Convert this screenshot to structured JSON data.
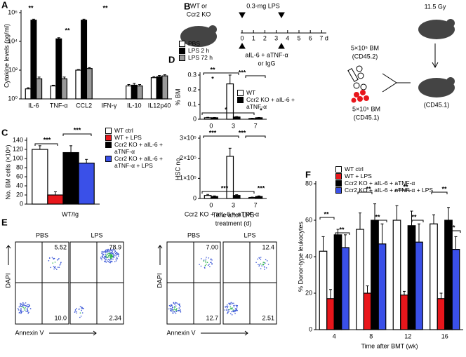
{
  "chart_data": [
    {
      "type": "bar",
      "panel": "A",
      "y_label": "Cytokine levels (pg/ml)",
      "log_scale": true,
      "categories": [
        "IL-6",
        "TNF-α",
        "CCL2",
        "IFN-γ",
        "IL-10",
        "IL12p40"
      ],
      "ylim": [
        1,
        1000000
      ],
      "yticks": [
        {
          "value": 1,
          "label": "10⁰"
        },
        {
          "value": 100,
          "label": "10²"
        },
        {
          "value": 10000,
          "label": "10⁴"
        },
        {
          "value": 1000000,
          "label": "10⁶"
        }
      ],
      "series": [
        {
          "name": "PBS",
          "color": "#ffffff",
          "values": [
            5,
            8,
            100,
            null,
            8,
            30
          ],
          "errors": [
            1,
            1,
            10,
            null,
            2,
            5
          ]
        },
        {
          "name": "LPS 2 h",
          "color": "#000000",
          "values": [
            300000,
            15000,
            300000,
            null,
            9,
            35
          ],
          "errors": [
            50000,
            3000,
            50000,
            null,
            3,
            8
          ]
        },
        {
          "name": "LPS 72 h",
          "color": "#999999",
          "values": [
            25,
            25,
            130,
            null,
            8,
            40
          ],
          "errors": [
            8,
            8,
            20,
            null,
            2,
            8
          ]
        }
      ],
      "annotations": [
        "**",
        "**",
        "**"
      ]
    },
    {
      "type": "bar",
      "panel": "C",
      "y_label": "No. BM cells (×10⁶)",
      "categories": [
        null
      ],
      "ylim": [
        0,
        140
      ],
      "yticks": [
        0,
        20,
        40,
        60,
        80,
        100,
        120,
        140
      ],
      "series": [
        {
          "name": "WT ctrl",
          "color": "#ffffff",
          "values": [
            120
          ],
          "errors": [
            8
          ]
        },
        {
          "name": "WT + LPS",
          "color": "#e8161b",
          "values": [
            20
          ],
          "errors": [
            7
          ]
        },
        {
          "name": "Ccr2 KO + aIL-6 + aTNF-α",
          "color": "#000000",
          "values": [
            113
          ],
          "errors": [
            15
          ]
        },
        {
          "name": "Ccr2 KO + aIL-6 + aTNF-α + LPS",
          "color": "#3a50e8",
          "values": [
            90
          ],
          "errors": [
            8
          ]
        }
      ],
      "annotations": [
        "***",
        "***"
      ]
    },
    {
      "type": "bar",
      "panel": "D",
      "y_label": "% BM",
      "categories": [
        "0",
        "3",
        "7"
      ],
      "ylim": [
        0,
        0.3
      ],
      "yticks": [
        0,
        0.1,
        0.2,
        0.3
      ],
      "series": [
        {
          "name": "WT",
          "color": "#ffffff",
          "values": [
            0.01,
            0.24,
            0.005
          ],
          "errors": [
            0.003,
            0.06,
            0.002
          ]
        },
        {
          "name": "Ccr2 KO + aIL-6 + aTNF-α",
          "color": "#000000",
          "values": [
            0.01,
            0.015,
            0.01
          ],
          "errors": [
            0.002,
            0.003,
            0.002
          ]
        }
      ],
      "annotations": [
        "**",
        "*",
        "***",
        "*",
        "*"
      ]
    },
    {
      "type": "bar",
      "y_label": "HSC no.",
      "x_label": [
        "Time after LPS",
        "treatment (d)"
      ],
      "categories": [
        "0",
        "3",
        "7"
      ],
      "ylim": [
        0,
        300000
      ],
      "yticks": [
        0,
        {
          "value": 100000,
          "label": "1×10⁵"
        },
        {
          "value": 200000,
          "label": "2×10⁵"
        },
        {
          "value": 300000,
          "label": "3×10⁵"
        }
      ],
      "series": [
        {
          "color": "#ffffff",
          "values": [
            15000,
            210000,
            5000
          ],
          "errors": [
            5000,
            40000,
            2000
          ]
        },
        {
          "color": "#000000",
          "values": [
            10000,
            15000,
            10000
          ],
          "errors": [
            3000,
            4000,
            3000
          ]
        }
      ],
      "annotations": [
        "***",
        "***",
        "***",
        "***"
      ]
    },
    {
      "type": "bar",
      "panel": "F",
      "y_label": "% Donor-type leukocytes",
      "x_label": [
        "Time after BMT (wk)"
      ],
      "categories": [
        "4",
        "8",
        "12",
        "16"
      ],
      "ylim": [
        0,
        80
      ],
      "yticks": [
        0,
        20,
        40,
        60,
        80
      ],
      "series": [
        {
          "name": "WT ctrl",
          "color": "#ffffff",
          "values": [
            43,
            55,
            60,
            58
          ],
          "errors": [
            8,
            9,
            8,
            5
          ]
        },
        {
          "name": "WT + LPS",
          "color": "#e8161b",
          "values": [
            17,
            20,
            19,
            17
          ],
          "errors": [
            5,
            4,
            2,
            3
          ]
        },
        {
          "name": "Ccr2 KO + aIL-6 + aTNF-α",
          "color": "#000000",
          "values": [
            52,
            60,
            57,
            60
          ],
          "errors": [
            3,
            9,
            8,
            7
          ]
        },
        {
          "name": "Ccr2 KO + aIL-6 + aTNF-α + LPS",
          "color": "#3a50e8",
          "values": [
            45,
            47,
            48,
            44
          ],
          "errors": [
            7,
            11,
            10,
            7
          ]
        }
      ],
      "annotations": [
        "**",
        "**",
        "**",
        "**",
        "**",
        "**",
        "**",
        "**"
      ]
    }
  ],
  "diagram": {
    "panel": "B",
    "mouse_label": [
      "WT or",
      "Ccr2 KO"
    ],
    "lps": "0.3-mg LPS",
    "timeline": [
      "0",
      "1",
      "2",
      "3",
      "4",
      "5",
      "6",
      "7 d"
    ],
    "treatment": [
      "aIL-6 + aTNF-α",
      "or IgG"
    ],
    "donor1": [
      "5×10⁵ BM",
      "(CD45.2)"
    ],
    "donor2": [
      "5×10⁵ BM",
      "(CD45.1)"
    ],
    "irradiation": "11.5 Gy",
    "recipient": "(CD45.1)"
  },
  "flow": {
    "panel": "E",
    "x_label": "Annexin V",
    "y_label": "DAPI",
    "groups": [
      {
        "title": "WT/Ig",
        "plots": [
          {
            "label": "PBS",
            "upper_right": "5.52",
            "lower_right": "10.0"
          },
          {
            "label": "LPS",
            "upper_right": "78.9",
            "lower_right": "2.34"
          }
        ]
      },
      {
        "title": "Ccr2 KO + aIL-6 + aTNF-α",
        "plots": [
          {
            "label": "PBS",
            "upper_right": "7.00",
            "lower_right": "12.7"
          },
          {
            "label": "LPS",
            "upper_right": "12.4",
            "lower_right": "2.51"
          }
        ]
      }
    ]
  }
}
